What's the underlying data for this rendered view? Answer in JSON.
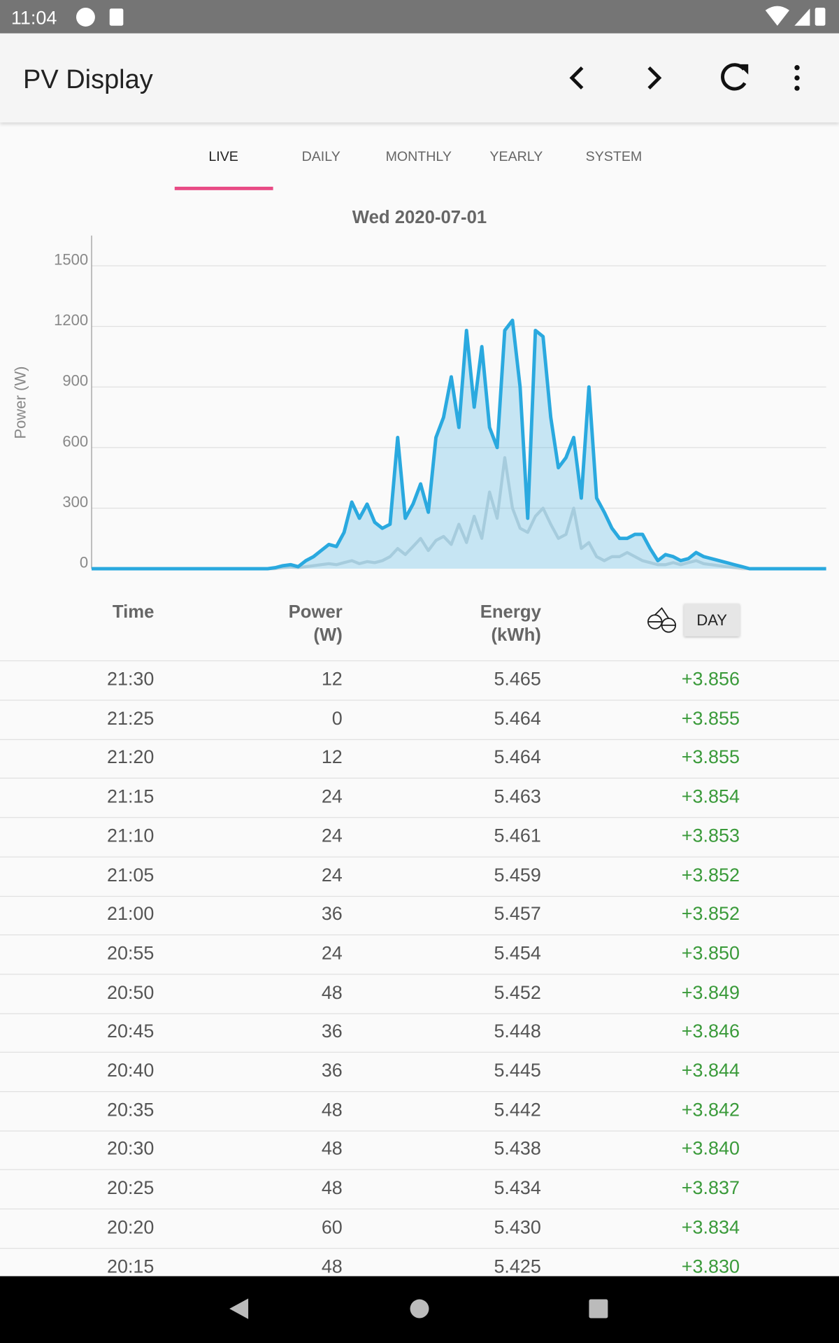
{
  "status_bar": {
    "time": "11:04"
  },
  "app_bar": {
    "title": "PV Display"
  },
  "tabs": [
    "LIVE",
    "DAILY",
    "MONTHLY",
    "YEARLY",
    "SYSTEM"
  ],
  "chart_data": {
    "type": "line",
    "title": "Wed  2020-07-01",
    "y_label": "Power (W)",
    "ylim": [
      0,
      1650
    ],
    "yticks": [
      0,
      300,
      600,
      900,
      1200,
      1500
    ],
    "grid": true,
    "series": [
      {
        "color": "#cfd8dc",
        "values": [
          0,
          0,
          0,
          0,
          0,
          0,
          0,
          0,
          0,
          0,
          0,
          0,
          0,
          0,
          0,
          0,
          0,
          0,
          0,
          0,
          0,
          0,
          0,
          0,
          0,
          5,
          8,
          5,
          10,
          15,
          20,
          25,
          20,
          30,
          40,
          25,
          35,
          30,
          40,
          60,
          100,
          70,
          110,
          150,
          90,
          140,
          160,
          120,
          220,
          130,
          260,
          150,
          380,
          250,
          550,
          300,
          200,
          180,
          260,
          300,
          220,
          150,
          170,
          300,
          100,
          130,
          60,
          40,
          60,
          60,
          80,
          60,
          40,
          30,
          20,
          20,
          30,
          20,
          30,
          40,
          25,
          20,
          15,
          10,
          5,
          0,
          0,
          0,
          0,
          0,
          0,
          0,
          0,
          0,
          0,
          0,
          0
        ]
      },
      {
        "color": "#2aa9df",
        "values": [
          0,
          0,
          0,
          0,
          0,
          0,
          0,
          0,
          0,
          0,
          0,
          0,
          0,
          0,
          0,
          0,
          0,
          0,
          0,
          0,
          0,
          0,
          0,
          0,
          5,
          15,
          20,
          10,
          40,
          60,
          90,
          120,
          110,
          180,
          330,
          250,
          320,
          230,
          200,
          220,
          650,
          250,
          320,
          420,
          280,
          650,
          750,
          950,
          700,
          1180,
          800,
          1100,
          700,
          600,
          1180,
          1230,
          900,
          250,
          1180,
          1150,
          750,
          500,
          550,
          650,
          350,
          900,
          350,
          280,
          200,
          150,
          150,
          170,
          170,
          100,
          40,
          70,
          60,
          40,
          50,
          80,
          60,
          50,
          40,
          30,
          20,
          10,
          0,
          0,
          0,
          0,
          0,
          0,
          0,
          0,
          0,
          0,
          0
        ]
      }
    ]
  },
  "table": {
    "headers": [
      "Time",
      "Power\n(W)",
      "Energy\n(kWh)"
    ],
    "button": "DAY",
    "rows": [
      [
        "21:30",
        "12",
        "5.465",
        "+3.856"
      ],
      [
        "21:25",
        "0",
        "5.464",
        "+3.855"
      ],
      [
        "21:20",
        "12",
        "5.464",
        "+3.855"
      ],
      [
        "21:15",
        "24",
        "5.463",
        "+3.854"
      ],
      [
        "21:10",
        "24",
        "5.461",
        "+3.853"
      ],
      [
        "21:05",
        "24",
        "5.459",
        "+3.852"
      ],
      [
        "21:00",
        "36",
        "5.457",
        "+3.852"
      ],
      [
        "20:55",
        "24",
        "5.454",
        "+3.850"
      ],
      [
        "20:50",
        "48",
        "5.452",
        "+3.849"
      ],
      [
        "20:45",
        "36",
        "5.448",
        "+3.846"
      ],
      [
        "20:40",
        "36",
        "5.445",
        "+3.844"
      ],
      [
        "20:35",
        "48",
        "5.442",
        "+3.842"
      ],
      [
        "20:30",
        "48",
        "5.438",
        "+3.840"
      ],
      [
        "20:25",
        "48",
        "5.434",
        "+3.837"
      ],
      [
        "20:20",
        "60",
        "5.430",
        "+3.834"
      ],
      [
        "20:15",
        "48",
        "5.425",
        "+3.830"
      ]
    ]
  }
}
